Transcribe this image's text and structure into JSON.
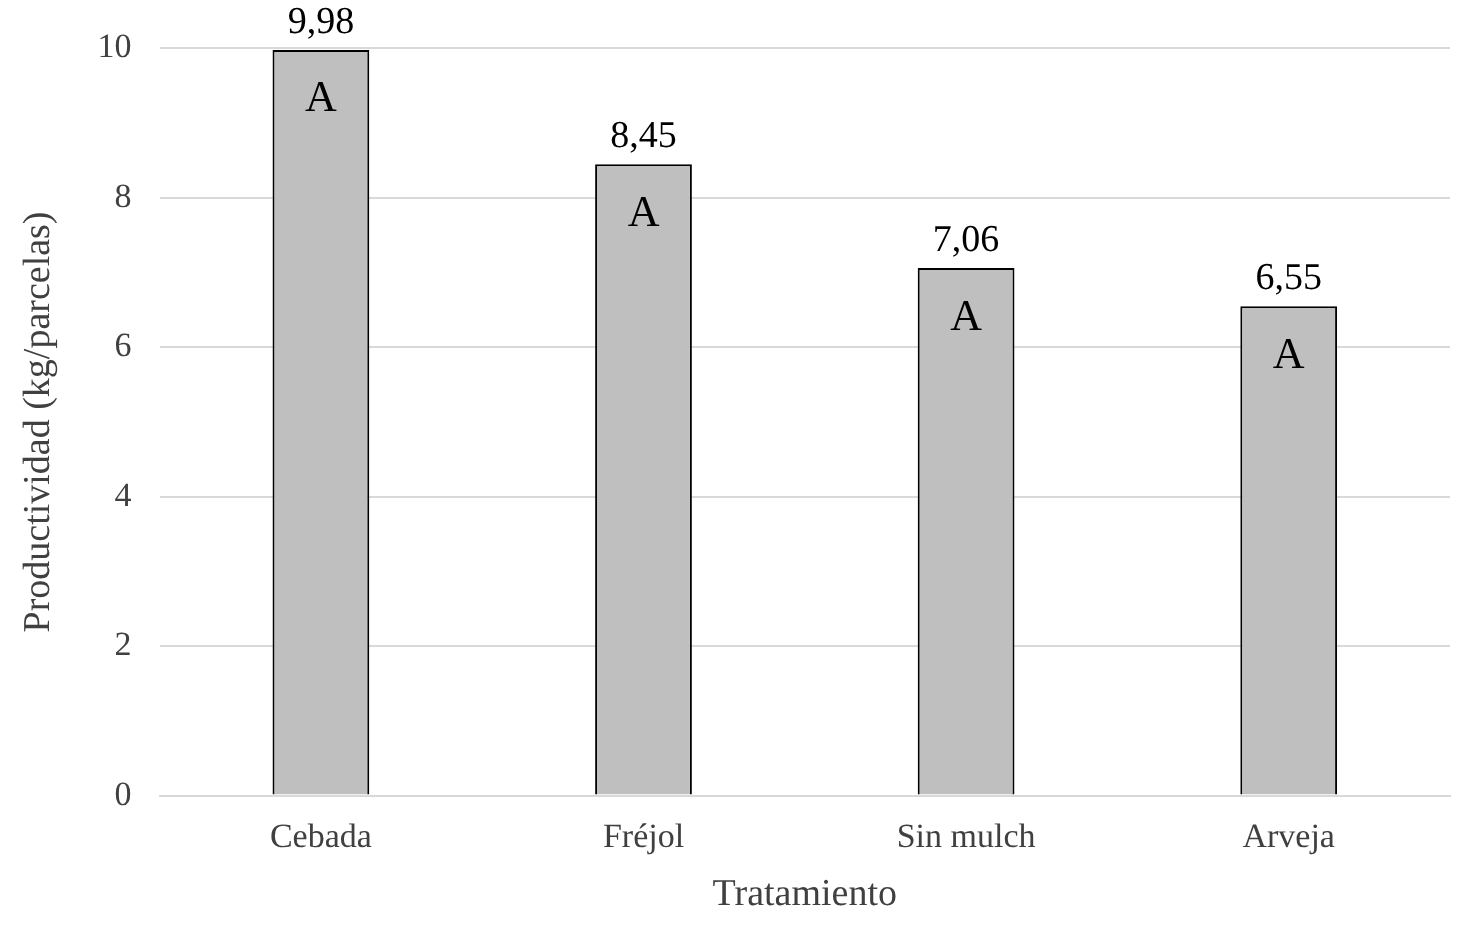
{
  "chart_data": {
    "type": "bar",
    "xlabel": "Tratamiento",
    "ylabel": "Productividad (kg/parcelas)",
    "categories": [
      "Cebada",
      "Fréjol",
      "Sin mulch",
      "Arveja"
    ],
    "values": [
      9.98,
      8.45,
      7.06,
      6.55
    ],
    "value_labels": [
      "9,98",
      "8,45",
      "7,06",
      "6,55"
    ],
    "color": "#bfbfbf",
    "ylim": [
      0,
      10
    ],
    "yticks": [
      0,
      2,
      4,
      6,
      8,
      10
    ],
    "grid": "y",
    "legend": false,
    "annotations": [
      {
        "text": "A",
        "x": "Cebada",
        "y": 9.98
      },
      {
        "text": "A",
        "x": "Fréjol",
        "y": 8.45
      },
      {
        "text": "A",
        "x": "Sin mulch",
        "y": 7.06
      },
      {
        "text": "A",
        "x": "Arveja",
        "y": 6.55
      }
    ]
  }
}
